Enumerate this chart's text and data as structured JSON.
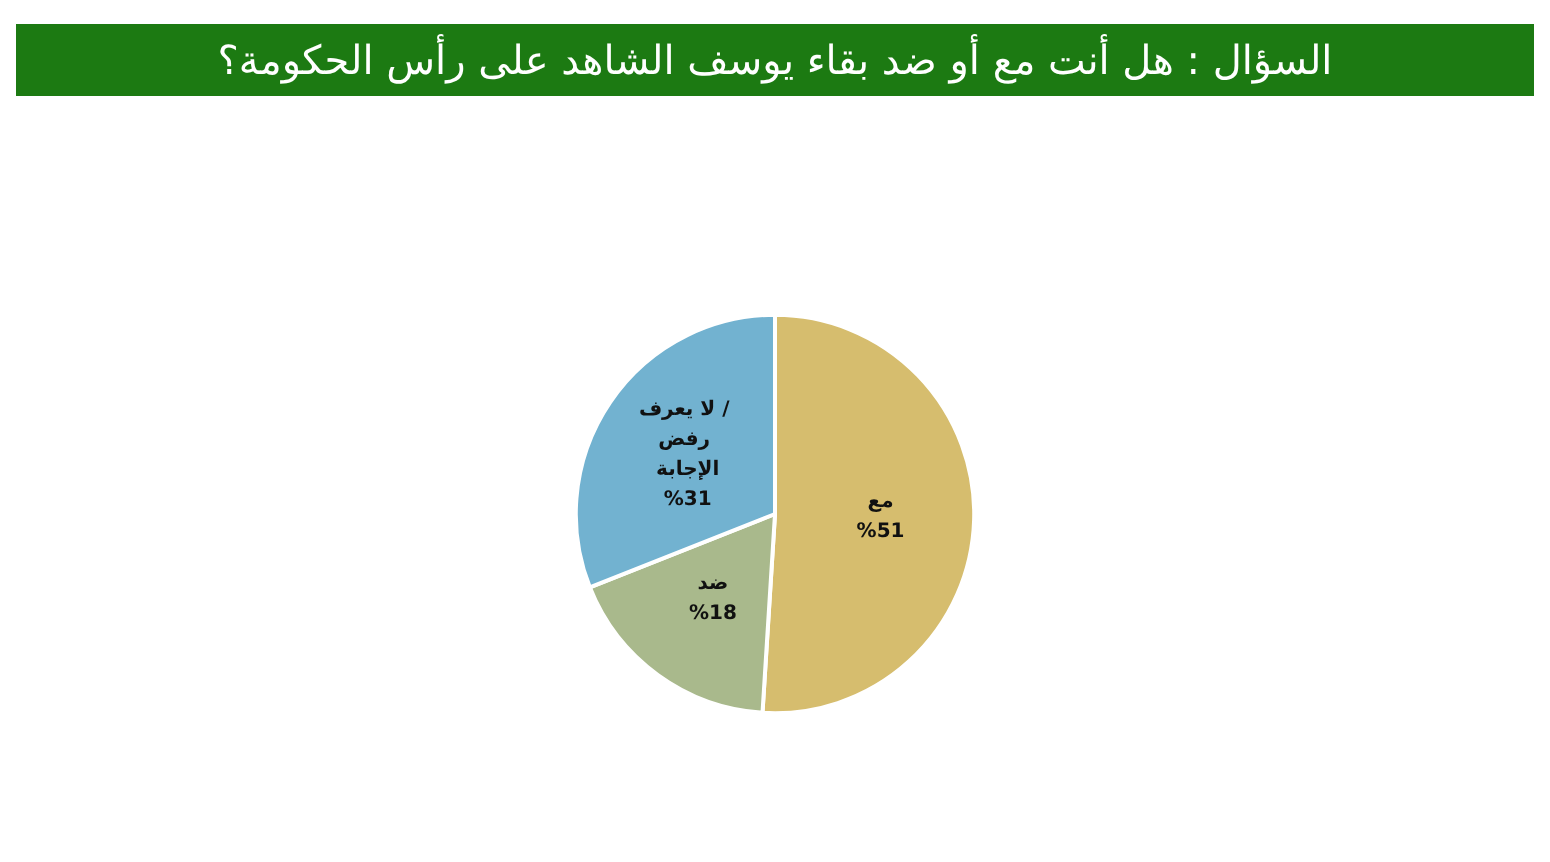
{
  "chart_data": {
    "type": "pie",
    "title": "السؤال : هل أنت مع أو ضد بقاء يوسف الشاهد على رأس الحكومة؟",
    "categories": [
      "مع",
      "ضد",
      "لا يعرف / رفض الإجابة"
    ],
    "values": [
      51,
      18,
      31
    ],
    "value_labels": [
      "%51",
      "%18",
      "%31"
    ],
    "colors": [
      "#d6bd6e",
      "#a9b98c",
      "#72b2d0"
    ],
    "legend": false
  }
}
